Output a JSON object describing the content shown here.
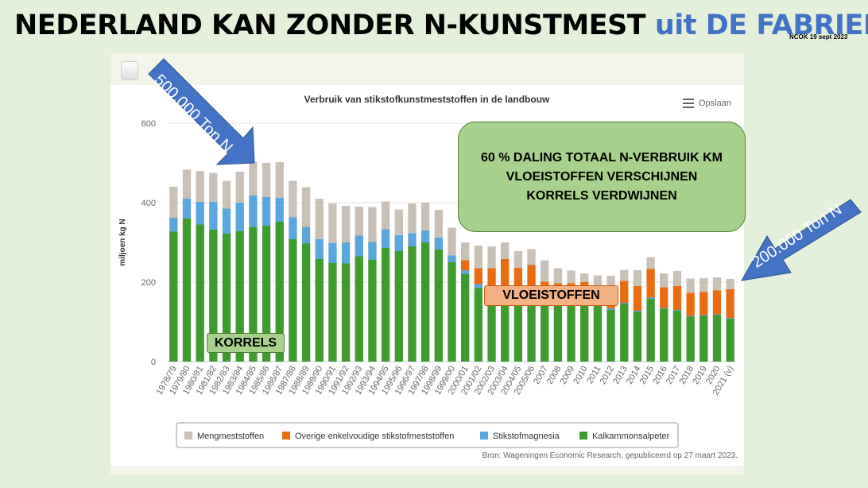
{
  "slide": {
    "title_main": "NEDERLAND KAN ZONDER N-KUNSTMEST",
    "title_highlight": "uit DE FABRIEK",
    "date_note": "NCOK 19 sept 2023",
    "highlight_color": "#4472c4"
  },
  "annotations": {
    "arrow_left": "500.000 Ton N",
    "arrow_right": "200.000 Ton N",
    "arrow_color": "#4472c4",
    "callout_lines": [
      "60 % DALING TOTAAL N-VERBRUIK KM",
      "VLOEISTOFFEN VERSCHIJNEN",
      "KORRELS VERDWIJNEN"
    ],
    "label_korrels": "KORRELS",
    "label_vloeistoffen": "VLOEISTOFFEN"
  },
  "chart_menu": {
    "export_label": "Opslaan",
    "menu_icon": "hamburger-icon"
  },
  "chart_data": {
    "type": "bar",
    "stacked": true,
    "title": "Verbruik van stikstofkunstmeststoffen in de landbouw",
    "ylabel": "miljoen kg N",
    "xlabel": "",
    "ylim": [
      0,
      600
    ],
    "yticks": [
      0,
      200,
      400,
      600
    ],
    "grid": true,
    "legend_position": "bottom",
    "source": "Bron: Wageningen Economic Research, gepubliceerd op 27 maart 2023.",
    "categories": [
      "1978/79",
      "1979/80",
      "1980/81",
      "1981/82",
      "1982/83",
      "1983/84",
      "1984/85",
      "1985/86",
      "1986/87",
      "1987/88",
      "1988/89",
      "1989/90",
      "1990/91",
      "1991/92",
      "1992/93",
      "1993/94",
      "1994/95",
      "1995/96",
      "1996/97",
      "1997/98",
      "1998/99",
      "1999/00",
      "2000/01",
      "2001/02",
      "2002/03",
      "2003/04",
      "2004/05",
      "2005/06",
      "2007",
      "2008",
      "2009",
      "2010",
      "2011",
      "2012",
      "2013",
      "2014",
      "2015",
      "2016",
      "2017",
      "2018",
      "2019",
      "2020",
      "2021 (v)"
    ],
    "series": [
      {
        "name": "Kalkammonsalpeter",
        "color": "#3f9a2f",
        "values": [
          327,
          360,
          345,
          332,
          322,
          328,
          338,
          342,
          352,
          308,
          297,
          258,
          248,
          247,
          265,
          256,
          286,
          278,
          290,
          300,
          282,
          250,
          220,
          185,
          170,
          175,
          170,
          180,
          165,
          165,
          160,
          155,
          140,
          130,
          145,
          125,
          158,
          133,
          128,
          113,
          115,
          117,
          108
        ]
      },
      {
        "name": "Stikstofmagnesia",
        "color": "#5aa6dd",
        "values": [
          35,
          50,
          57,
          70,
          63,
          72,
          80,
          72,
          60,
          55,
          42,
          50,
          50,
          53,
          52,
          45,
          47,
          40,
          33,
          30,
          30,
          17,
          10,
          10,
          10,
          8,
          8,
          8,
          6,
          6,
          5,
          5,
          4,
          4,
          3,
          3,
          3,
          2,
          2,
          2,
          2,
          2,
          2
        ]
      },
      {
        "name": "Overige enkelvoudige stikstofmeststoffen",
        "color": "#ea6c12",
        "values": [
          0,
          0,
          0,
          0,
          0,
          0,
          0,
          0,
          0,
          0,
          0,
          0,
          0,
          0,
          0,
          0,
          0,
          0,
          0,
          0,
          0,
          0,
          25,
          40,
          55,
          75,
          58,
          55,
          30,
          26,
          32,
          40,
          45,
          40,
          55,
          62,
          72,
          52,
          60,
          58,
          58,
          60,
          72
        ]
      },
      {
        "name": "Mengmeststoffen",
        "color": "#c9c1b8",
        "values": [
          78,
          73,
          78,
          73,
          70,
          78,
          85,
          86,
          90,
          92,
          100,
          102,
          100,
          92,
          73,
          88,
          70,
          65,
          75,
          70,
          70,
          70,
          45,
          57,
          55,
          42,
          42,
          40,
          54,
          38,
          32,
          22,
          28,
          42,
          28,
          40,
          30,
          35,
          38,
          36,
          35,
          33,
          26
        ]
      }
    ],
    "legend_order": [
      "Mengmeststoffen",
      "Overige enkelvoudige stikstofmeststoffen",
      "Stikstofmagnesia",
      "Kalkammonsalpeter"
    ]
  }
}
